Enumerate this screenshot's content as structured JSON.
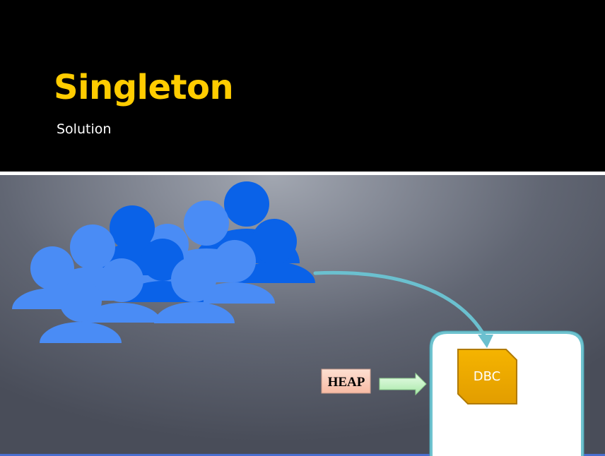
{
  "slide": {
    "title": "Singleton",
    "subtitle": "Solution"
  },
  "diagram": {
    "users_icon": "group-of-people-icon",
    "heap_label": "HEAP",
    "object_label": "DBC",
    "colors": {
      "title": "#ffcc00",
      "person_dark": "#0a62e8",
      "person_light": "#4a8cf5",
      "arrow": "#5bb0c4",
      "heap_fill": "#fcd2c0",
      "heap_arrow": "#c8f5c8",
      "dbc_fill": "#f0a800",
      "heap_container_border": "#6ec3cf"
    }
  }
}
